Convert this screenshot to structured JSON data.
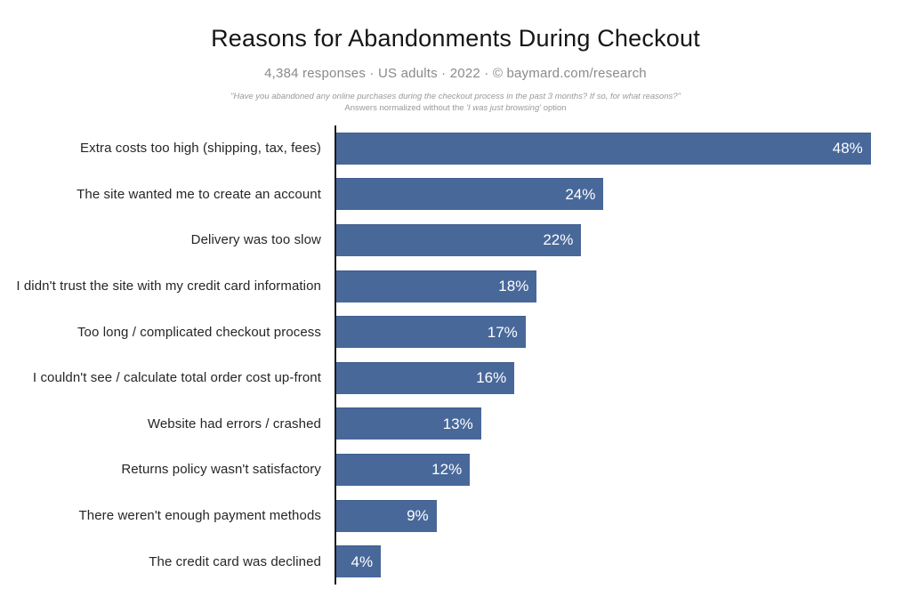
{
  "header": {
    "title": "Reasons for Abandonments During Checkout",
    "subtitle": "4,384 responses  ·  US adults  ·  2022  ·  ©  baymard.com/research",
    "note_line1": "\"Have you abandoned any online purchases during the checkout process in the past 3 months? If so, for what reasons?\"",
    "note_line2_prefix": "Answers normalized without the ",
    "note_line2_emphasis": "'I was just browsing'",
    "note_line2_suffix": " option"
  },
  "colors": {
    "background": "#ffffff",
    "bar": "#48689a",
    "bar_edge": "#3f5d8c",
    "title_text": "#161616",
    "subtitle_text": "#8a8a8a",
    "note_text": "#999999",
    "label_text": "#262626",
    "value_text": "#ffffff",
    "axis": "#1c1c1c"
  },
  "chart_data": {
    "type": "bar",
    "orientation": "horizontal",
    "title": "Reasons for Abandonments During Checkout",
    "subtitle": "4,384 responses · US adults · 2022 · © baymard.com/research",
    "categories": [
      "Extra costs too high (shipping, tax, fees)",
      "The site wanted me to create an account",
      "Delivery was too slow",
      "I didn't trust the site with my credit card information",
      "Too long / complicated checkout process",
      "I couldn't see / calculate total order cost up-front",
      "Website had errors / crashed",
      "Returns policy wasn't satisfactory",
      "There weren't enough payment methods",
      "The credit card was declined"
    ],
    "values": [
      48,
      24,
      22,
      18,
      17,
      16,
      13,
      12,
      9,
      4
    ],
    "value_labels": [
      "48%",
      "24%",
      "22%",
      "18%",
      "17%",
      "16%",
      "13%",
      "12%",
      "9%",
      "4%"
    ],
    "unit": "%",
    "xlabel": "",
    "ylabel": "",
    "xlim": [
      0,
      48
    ],
    "grid": false,
    "legend": false,
    "value_label_position": "inside-end"
  }
}
